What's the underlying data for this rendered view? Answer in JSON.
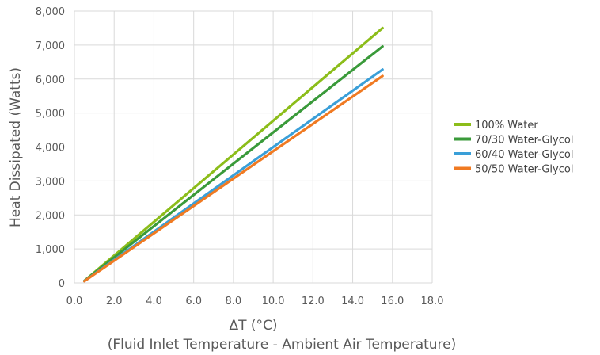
{
  "chart_data": {
    "type": "line",
    "title": "",
    "xlabel": "ΔT (°C)",
    "xlabel_sub": "(Fluid Inlet Temperature - Ambient Air Temperature)",
    "ylabel": "Heat Dissipated (Watts)",
    "xlim": [
      0,
      18
    ],
    "ylim": [
      0,
      8000
    ],
    "x_ticks": [
      "0.0",
      "2.0",
      "4.0",
      "6.0",
      "8.0",
      "10.0",
      "12.0",
      "14.0",
      "16.0",
      "18.0"
    ],
    "y_ticks": [
      "0",
      "1,000",
      "2,000",
      "3,000",
      "4,000",
      "5,000",
      "6,000",
      "7,000",
      "8,000"
    ],
    "grid": true,
    "legend_position": "right",
    "series": [
      {
        "name": "100% Water",
        "color": "#8cbd1a",
        "x": [
          0.5,
          15.5
        ],
        "y": [
          60,
          7500
        ]
      },
      {
        "name": "70/30 Water-Glycol",
        "color": "#3a9a3a",
        "x": [
          0.5,
          15.5
        ],
        "y": [
          60,
          6960
        ]
      },
      {
        "name": "60/40 Water-Glycol",
        "color": "#3a9fd8",
        "x": [
          0.5,
          15.5
        ],
        "y": [
          55,
          6280
        ]
      },
      {
        "name": "50/50 Water-Glycol",
        "color": "#f07a22",
        "x": [
          0.5,
          15.5
        ],
        "y": [
          50,
          6090
        ]
      }
    ]
  }
}
